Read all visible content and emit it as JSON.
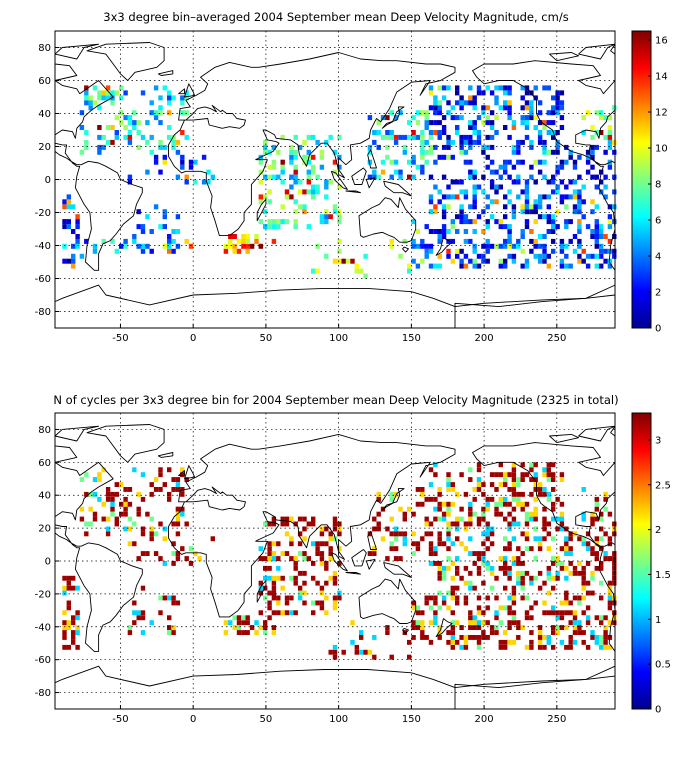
{
  "chart_data": [
    {
      "type": "heatmap",
      "title": "3x3 degree bin–averaged 2004 September mean Deep Velocity Magnitude, cm/s",
      "xlim": [
        -95,
        290
      ],
      "ylim": [
        -90,
        90
      ],
      "xticks": [
        -50,
        0,
        50,
        100,
        150,
        200,
        250
      ],
      "yticks": [
        80,
        60,
        40,
        20,
        0,
        -20,
        -40,
        -60,
        -80
      ],
      "grid": true,
      "colorbar": {
        "min": 0,
        "max": 16.5,
        "ticks": [
          0,
          2,
          4,
          6,
          8,
          10,
          12,
          14,
          16
        ],
        "colormap": "jet"
      },
      "bin_size_deg": 3,
      "clusters": [
        {
          "lon": [
            -80,
            -5
          ],
          "lat": [
            15,
            55
          ],
          "density": 0.25,
          "mean": 6
        },
        {
          "lon": [
            -45,
            15
          ],
          "lat": [
            -5,
            15
          ],
          "density": 0.18,
          "mean": 4
        },
        {
          "lon": [
            -45,
            -10
          ],
          "lat": [
            -45,
            -15
          ],
          "density": 0.22,
          "mean": 4
        },
        {
          "lon": [
            -92,
            -80
          ],
          "lat": [
            -55,
            -10
          ],
          "density": 0.45,
          "mean": 3
        },
        {
          "lon": [
            -92,
            0
          ],
          "lat": [
            -48,
            -36
          ],
          "density": 0.18,
          "mean": 5
        },
        {
          "lon": [
            20,
            55
          ],
          "lat": [
            -45,
            -35
          ],
          "density": 0.4,
          "mean": 12
        },
        {
          "lon": [
            45,
            100
          ],
          "lat": [
            -30,
            25
          ],
          "density": 0.32,
          "mean": 7
        },
        {
          "lon": [
            80,
            150
          ],
          "lat": [
            -60,
            -38
          ],
          "density": 0.16,
          "mean": 9
        },
        {
          "lon": [
            120,
            165
          ],
          "lat": [
            0,
            40
          ],
          "density": 0.25,
          "mean": 6
        },
        {
          "lon": [
            160,
            255
          ],
          "lat": [
            20,
            55
          ],
          "density": 0.42,
          "mean": 3
        },
        {
          "lon": [
            160,
            290
          ],
          "lat": [
            -15,
            20
          ],
          "density": 0.32,
          "mean": 3
        },
        {
          "lon": [
            150,
            290
          ],
          "lat": [
            -55,
            -15
          ],
          "density": 0.38,
          "mean": 3
        },
        {
          "lon": [
            265,
            290
          ],
          "lat": [
            20,
            45
          ],
          "density": 0.3,
          "mean": 8
        }
      ]
    },
    {
      "type": "heatmap",
      "title": "N of cycles per 3x3 degree bin for 2004 September mean Deep Velocity Magnitude (2325 in total)",
      "xlim": [
        -95,
        290
      ],
      "ylim": [
        -90,
        90
      ],
      "xticks": [
        -50,
        0,
        50,
        100,
        150,
        200,
        250
      ],
      "yticks": [
        80,
        60,
        40,
        20,
        0,
        -20,
        -40,
        -60,
        -80
      ],
      "grid": true,
      "colorbar": {
        "min": 0,
        "max": 3.3,
        "ticks": [
          0,
          0.5,
          1,
          1.5,
          2,
          2.5,
          3
        ],
        "colormap": "jet"
      },
      "bin_size_deg": 3,
      "total_cycles": 2325,
      "clusters": [
        {
          "lon": [
            -80,
            -5
          ],
          "lat": [
            15,
            55
          ],
          "density": 0.28,
          "mean": 2.8
        },
        {
          "lon": [
            -45,
            15
          ],
          "lat": [
            -5,
            15
          ],
          "density": 0.2,
          "mean": 2.7
        },
        {
          "lon": [
            -45,
            -10
          ],
          "lat": [
            -45,
            -15
          ],
          "density": 0.25,
          "mean": 2.8
        },
        {
          "lon": [
            -92,
            -80
          ],
          "lat": [
            -55,
            -10
          ],
          "density": 0.45,
          "mean": 2.6
        },
        {
          "lon": [
            20,
            55
          ],
          "lat": [
            -45,
            -35
          ],
          "density": 0.4,
          "mean": 2.9
        },
        {
          "lon": [
            45,
            100
          ],
          "lat": [
            -35,
            25
          ],
          "density": 0.35,
          "mean": 2.8
        },
        {
          "lon": [
            80,
            150
          ],
          "lat": [
            -60,
            -38
          ],
          "density": 0.18,
          "mean": 2.6
        },
        {
          "lon": [
            120,
            165
          ],
          "lat": [
            0,
            45
          ],
          "density": 0.28,
          "mean": 2.8
        },
        {
          "lon": [
            160,
            255
          ],
          "lat": [
            20,
            60
          ],
          "density": 0.42,
          "mean": 2.9
        },
        {
          "lon": [
            160,
            290
          ],
          "lat": [
            -15,
            20
          ],
          "density": 0.35,
          "mean": 2.9
        },
        {
          "lon": [
            150,
            290
          ],
          "lat": [
            -55,
            -15
          ],
          "density": 0.38,
          "mean": 2.9
        },
        {
          "lon": [
            265,
            290
          ],
          "lat": [
            20,
            45
          ],
          "density": 0.3,
          "mean": 2.8
        }
      ]
    }
  ]
}
